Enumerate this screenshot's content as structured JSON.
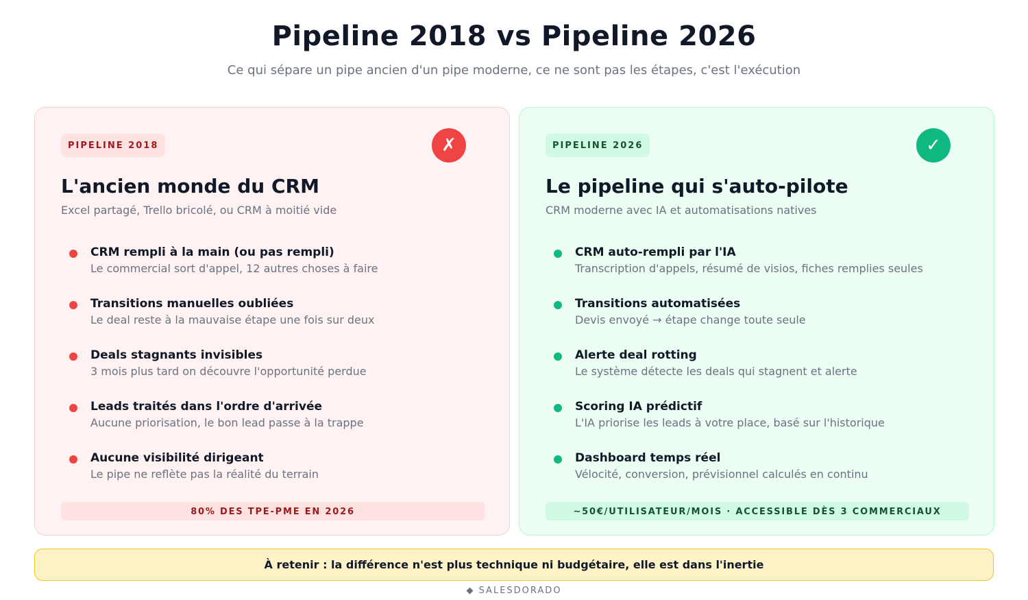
{
  "header": {
    "title": "Pipeline 2018 vs Pipeline 2026",
    "subtitle": "Ce qui sépare un pipe ancien d'un pipe moderne, ce ne sont pas les étapes, c'est l'exécution"
  },
  "old": {
    "tag": "PIPELINE 2018",
    "icon": "✗",
    "title": "L'ancien monde du CRM",
    "subtitle": "Excel partagé, Trello bricolé, ou CRM à moitié vide",
    "items": [
      {
        "title": "CRM rempli à la main (ou pas rempli)",
        "desc": "Le commercial sort d'appel, 12 autres choses à faire"
      },
      {
        "title": "Transitions manuelles oubliées",
        "desc": "Le deal reste à la mauvaise étape une fois sur deux"
      },
      {
        "title": "Deals stagnants invisibles",
        "desc": "3 mois plus tard on découvre l'opportunité perdue"
      },
      {
        "title": "Leads traités dans l'ordre d'arrivée",
        "desc": "Aucune priorisation, le bon lead passe à la trappe"
      },
      {
        "title": "Aucune visibilité dirigeant",
        "desc": "Le pipe ne reflète pas la réalité du terrain"
      }
    ],
    "footer": "80% DES TPE-PME EN 2026"
  },
  "new": {
    "tag": "PIPELINE 2026",
    "icon": "✓",
    "title": "Le pipeline qui s'auto-pilote",
    "subtitle": "CRM moderne avec IA et automatisations natives",
    "items": [
      {
        "title": "CRM auto-rempli par l'IA",
        "desc": "Transcription d'appels, résumé de visios, fiches remplies seules"
      },
      {
        "title": "Transitions automatisées",
        "desc": "Devis envoyé → étape change toute seule"
      },
      {
        "title": "Alerte deal rotting",
        "desc": "Le système détecte les deals qui stagnent et alerte"
      },
      {
        "title": "Scoring IA prédictif",
        "desc": "L'IA priorise les leads à votre place, basé sur l'historique"
      },
      {
        "title": "Dashboard temps réel",
        "desc": "Vélocité, conversion, prévisionnel calculés en continu"
      }
    ],
    "footer": "~50€/UTILISATEUR/MOIS · ACCESSIBLE DÈS 3 COMMERCIAUX"
  },
  "takeaway": "À retenir : la différence n'est plus technique ni budgétaire, elle est dans l'inertie",
  "brand": "◆ SALESDORADO"
}
